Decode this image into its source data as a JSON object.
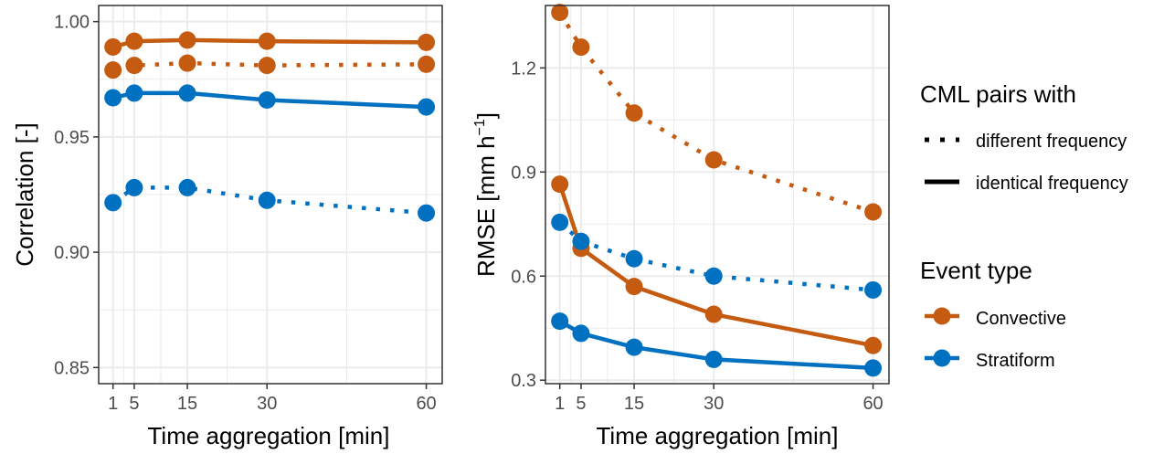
{
  "colors": {
    "convective": "#C55A11",
    "stratiform": "#0070C0",
    "grid": "#ebebeb",
    "panel_border": "#333333"
  },
  "chart_data": [
    {
      "type": "line",
      "id": "correlation",
      "xlabel": "Time aggregation [min]",
      "ylabel": "Correlation [-]",
      "xlim": [
        -1.7,
        63
      ],
      "ylim": [
        0.843,
        1.007
      ],
      "xticks": [
        1,
        5,
        15,
        30,
        60
      ],
      "xtick_labels": [
        "1",
        "5",
        "15",
        "30",
        "60"
      ],
      "yticks": [
        0.85,
        0.9,
        0.95,
        1.0
      ],
      "ytick_labels": [
        "0.85",
        "0.90",
        "0.95",
        "1.00"
      ],
      "grid": true,
      "x": [
        1,
        5,
        15,
        30,
        60
      ],
      "series": [
        {
          "event": "Convective",
          "cml": "identical",
          "values": [
            0.989,
            0.9915,
            0.992,
            0.9915,
            0.991
          ]
        },
        {
          "event": "Convective",
          "cml": "different",
          "values": [
            0.979,
            0.981,
            0.982,
            0.981,
            0.9815
          ]
        },
        {
          "event": "Stratiform",
          "cml": "identical",
          "values": [
            0.967,
            0.969,
            0.969,
            0.966,
            0.963
          ]
        },
        {
          "event": "Stratiform",
          "cml": "different",
          "values": [
            0.9215,
            0.928,
            0.928,
            0.9225,
            0.917
          ]
        }
      ]
    },
    {
      "type": "line",
      "id": "rmse",
      "xlabel": "Time aggregation [min]",
      "ylabel_main": "RMSE [mm h",
      "ylabel_sup": "−1",
      "ylabel_end": "]",
      "xlim": [
        -1.7,
        63
      ],
      "ylim": [
        0.29,
        1.38
      ],
      "xticks": [
        1,
        5,
        15,
        30,
        60
      ],
      "xtick_labels": [
        "1",
        "5",
        "15",
        "30",
        "60"
      ],
      "yticks": [
        0.3,
        0.6,
        0.9,
        1.2
      ],
      "ytick_labels": [
        "0.3",
        "0.6",
        "0.9",
        "1.2"
      ],
      "grid": true,
      "x": [
        1,
        5,
        15,
        30,
        60
      ],
      "series": [
        {
          "event": "Convective",
          "cml": "different",
          "values": [
            1.36,
            1.26,
            1.07,
            0.935,
            0.785
          ]
        },
        {
          "event": "Convective",
          "cml": "identical",
          "values": [
            0.865,
            0.68,
            0.57,
            0.49,
            0.4
          ]
        },
        {
          "event": "Stratiform",
          "cml": "different",
          "values": [
            0.755,
            0.7,
            0.65,
            0.6,
            0.56
          ]
        },
        {
          "event": "Stratiform",
          "cml": "identical",
          "values": [
            0.47,
            0.435,
            0.395,
            0.36,
            0.335
          ]
        }
      ]
    }
  ],
  "legend": {
    "linetype_title": "CML pairs with",
    "linetype_items": [
      {
        "label": "different frequency",
        "style": "dotted"
      },
      {
        "label": "identical frequency",
        "style": "solid"
      }
    ],
    "color_title": "Event type",
    "color_items": [
      {
        "label": "Convective",
        "color": "#C55A11"
      },
      {
        "label": "Stratiform",
        "color": "#0070C0"
      }
    ]
  }
}
